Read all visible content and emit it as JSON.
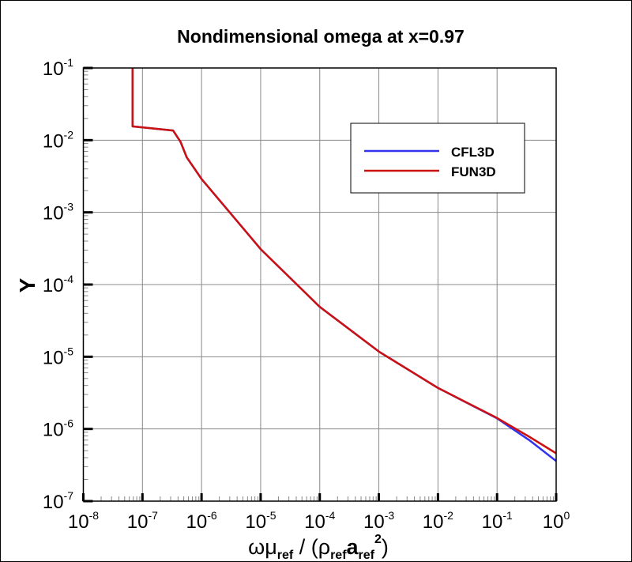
{
  "chart_data": {
    "type": "line",
    "title": "Nondimensional omega at x=0.97",
    "ylabel": "Y",
    "xlabel": {
      "omega": "ω",
      "mu": "μ",
      "sub_ref": "ref",
      "slash": " / (",
      "rho": "ρ",
      "a": "a",
      "sup": "2",
      "close": ")"
    },
    "x_scale": "log",
    "y_scale": "log",
    "xlim": [
      1e-08,
      1
    ],
    "ylim": [
      1e-07,
      0.1
    ],
    "x_ticks": [
      {
        "base": "10",
        "exp": "-8"
      },
      {
        "base": "10",
        "exp": "-7"
      },
      {
        "base": "10",
        "exp": "-6"
      },
      {
        "base": "10",
        "exp": "-5"
      },
      {
        "base": "10",
        "exp": "-4"
      },
      {
        "base": "10",
        "exp": "-3"
      },
      {
        "base": "10",
        "exp": "-2"
      },
      {
        "base": "10",
        "exp": "-1"
      },
      {
        "base": "10",
        "exp": "0"
      }
    ],
    "y_ticks": [
      {
        "base": "10",
        "exp": "-7"
      },
      {
        "base": "10",
        "exp": "-6"
      },
      {
        "base": "10",
        "exp": "-5"
      },
      {
        "base": "10",
        "exp": "-4"
      },
      {
        "base": "10",
        "exp": "-3"
      },
      {
        "base": "10",
        "exp": "-2"
      },
      {
        "base": "10",
        "exp": "-1"
      }
    ],
    "grid": true,
    "legend_position": "top-right",
    "series": [
      {
        "name": "CFL3D",
        "color": "#3333ee",
        "points": [
          [
            6.8e-08,
            0.1
          ],
          [
            6.8e-08,
            0.0155
          ],
          [
            3.3e-07,
            0.0136
          ],
          [
            4.4e-07,
            0.0095
          ],
          [
            5.6e-07,
            0.0058
          ],
          [
            1e-06,
            0.0029
          ],
          [
            1e-05,
            0.00031
          ],
          [
            0.0001,
            4.9e-05
          ],
          [
            0.001,
            1.18e-05
          ],
          [
            0.01,
            3.7e-06
          ],
          [
            0.1,
            1.4e-06
          ],
          [
            0.35,
            7e-07
          ],
          [
            1,
            3.6e-07
          ]
        ]
      },
      {
        "name": "FUN3D",
        "color": "#cc1111",
        "points": [
          [
            6.8e-08,
            0.1
          ],
          [
            6.8e-08,
            0.0155
          ],
          [
            3.3e-07,
            0.0136
          ],
          [
            4.4e-07,
            0.0095
          ],
          [
            5.6e-07,
            0.0058
          ],
          [
            1e-06,
            0.0029
          ],
          [
            1e-05,
            0.00031
          ],
          [
            0.0001,
            4.9e-05
          ],
          [
            0.001,
            1.18e-05
          ],
          [
            0.01,
            3.7e-06
          ],
          [
            0.1,
            1.42e-06
          ],
          [
            0.35,
            7.8e-07
          ],
          [
            1,
            4.6e-07
          ]
        ]
      }
    ]
  }
}
